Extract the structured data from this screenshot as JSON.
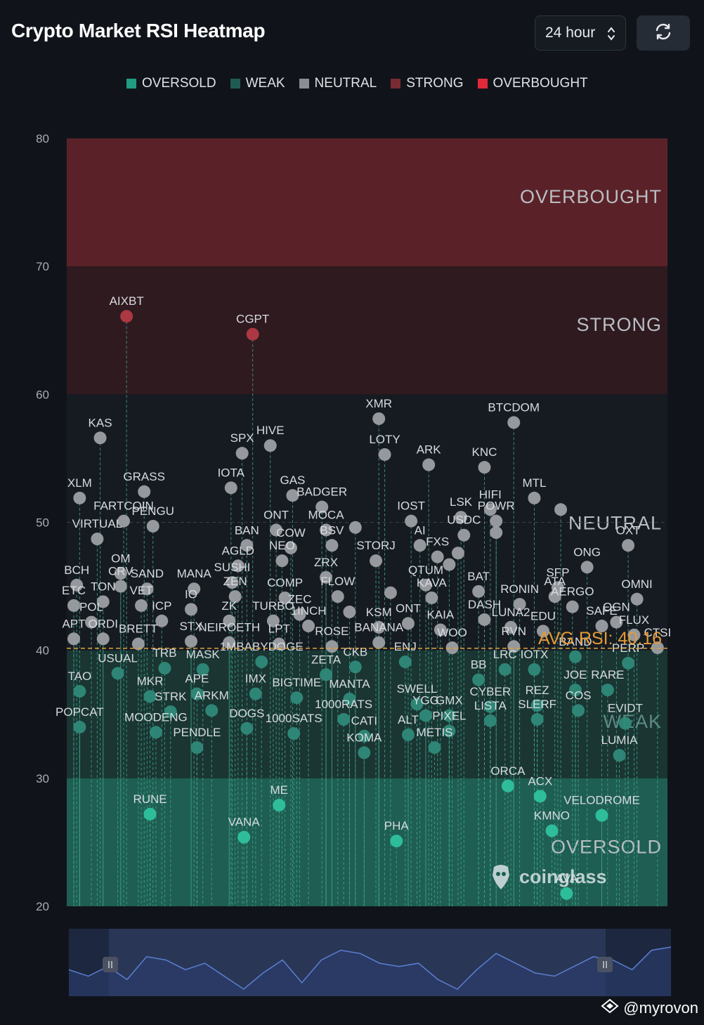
{
  "header": {
    "title": "Crypto Market RSI Heatmap",
    "period_label": "24 hour"
  },
  "legend": [
    {
      "label": "OVERSOLD",
      "color": "#1f9c83"
    },
    {
      "label": "WEAK",
      "color": "#1f5b53"
    },
    {
      "label": "NEUTRAL",
      "color": "#8a8d91"
    },
    {
      "label": "STRONG",
      "color": "#7a2a33"
    },
    {
      "label": "OVERBOUGHT",
      "color": "#e0293b"
    }
  ],
  "watermark": "coinglass",
  "credit": "@myrovon",
  "chart_data": {
    "type": "scatter",
    "ylim": [
      20,
      80
    ],
    "yticks": [
      20,
      30,
      40,
      50,
      60,
      70,
      80
    ],
    "zones": [
      {
        "label": "OVERBOUGHT",
        "from": 70,
        "to": 80,
        "color": "#5a2228"
      },
      {
        "label": "STRONG",
        "from": 60,
        "to": 70,
        "color": "#2f1a1f"
      },
      {
        "label": "NEUTRAL",
        "from": 40,
        "to": 60,
        "color": "#161b21"
      },
      {
        "label": "WEAK",
        "from": 30,
        "to": 40,
        "color": "#1a3532"
      },
      {
        "label": "OVERSOLD",
        "from": 20,
        "to": 30,
        "color": "#1f5e52"
      }
    ],
    "avg_rsi": 40.16,
    "avg_label": "AVG RSI: 40.16",
    "points": [
      {
        "x": 0.09,
        "y": 66.1,
        "label": "AIXBT"
      },
      {
        "x": 0.305,
        "y": 64.7,
        "label": "CGPT"
      },
      {
        "x": 0.52,
        "y": 58.1,
        "label": "XMR"
      },
      {
        "x": 0.75,
        "y": 57.8,
        "label": "BTCDOM"
      },
      {
        "x": 0.045,
        "y": 56.6,
        "label": "KAS"
      },
      {
        "x": 0.335,
        "y": 56.0,
        "label": "HIVE"
      },
      {
        "x": 0.287,
        "y": 55.4,
        "label": "SPX"
      },
      {
        "x": 0.53,
        "y": 55.3,
        "label": "LOTY"
      },
      {
        "x": 0.605,
        "y": 54.5,
        "label": "ARK"
      },
      {
        "x": 0.7,
        "y": 54.3,
        "label": "KNC"
      },
      {
        "x": 0.268,
        "y": 52.7,
        "label": "IOTA"
      },
      {
        "x": 0.12,
        "y": 52.4,
        "label": "GRASS"
      },
      {
        "x": 0.373,
        "y": 52.1,
        "label": "GAS"
      },
      {
        "x": 0.01,
        "y": 51.9,
        "label": "XLM"
      },
      {
        "x": 0.785,
        "y": 51.9,
        "label": "MTL"
      },
      {
        "x": 0.71,
        "y": 51.0,
        "label": "HIFI"
      },
      {
        "x": 0.423,
        "y": 51.2,
        "label": "BADGER"
      },
      {
        "x": 0.085,
        "y": 50.1,
        "label": "FARTCOIN"
      },
      {
        "x": 0.575,
        "y": 50.1,
        "label": "IOST"
      },
      {
        "x": 0.66,
        "y": 50.4,
        "label": "LSK"
      },
      {
        "x": 0.72,
        "y": 50.1,
        "label": "POWR"
      },
      {
        "x": 0.83,
        "y": 51.0,
        "label": "ENS"
      },
      {
        "x": 0.135,
        "y": 49.7,
        "label": "PENGU"
      },
      {
        "x": 0.345,
        "y": 49.4,
        "label": "ONT"
      },
      {
        "x": 0.43,
        "y": 49.4,
        "label": "MOCA"
      },
      {
        "x": 0.48,
        "y": 49.6,
        "label": "ANKR"
      },
      {
        "x": 0.665,
        "y": 49.0,
        "label": "USDC"
      },
      {
        "x": 0.59,
        "y": 48.2,
        "label": "AI"
      },
      {
        "x": 0.72,
        "y": 49.2,
        "label": "TIA"
      },
      {
        "x": 0.945,
        "y": 48.2,
        "label": "OXT"
      },
      {
        "x": 0.04,
        "y": 48.7,
        "label": "VIRTUAL"
      },
      {
        "x": 0.295,
        "y": 48.2,
        "label": "BAN"
      },
      {
        "x": 0.37,
        "y": 48.0,
        "label": "COW"
      },
      {
        "x": 0.44,
        "y": 48.2,
        "label": "BSV"
      },
      {
        "x": 0.62,
        "y": 47.3,
        "label": "FXS"
      },
      {
        "x": 0.655,
        "y": 47.6,
        "label": "KAS2"
      },
      {
        "x": 0.355,
        "y": 47.0,
        "label": "NEO"
      },
      {
        "x": 0.28,
        "y": 46.6,
        "label": "AGLD"
      },
      {
        "x": 0.515,
        "y": 47.0,
        "label": "STORJ"
      },
      {
        "x": 0.64,
        "y": 46.7,
        "label": "ZEN2"
      },
      {
        "x": 0.875,
        "y": 46.5,
        "label": "ONG"
      },
      {
        "x": 0.08,
        "y": 46.0,
        "label": "OM"
      },
      {
        "x": 0.27,
        "y": 45.3,
        "label": "SUSHI"
      },
      {
        "x": 0.43,
        "y": 45.7,
        "label": "ZRX"
      },
      {
        "x": 0.6,
        "y": 45.1,
        "label": "QTUM"
      },
      {
        "x": 0.69,
        "y": 44.6,
        "label": "BAT"
      },
      {
        "x": 0.825,
        "y": 44.9,
        "label": "SFP"
      },
      {
        "x": 0.005,
        "y": 45.1,
        "label": "BCH"
      },
      {
        "x": 0.08,
        "y": 45.0,
        "label": "CRV"
      },
      {
        "x": 0.125,
        "y": 44.8,
        "label": "SAND"
      },
      {
        "x": 0.205,
        "y": 44.8,
        "label": "MANA"
      },
      {
        "x": 0.275,
        "y": 44.2,
        "label": "ZEN"
      },
      {
        "x": 0.36,
        "y": 44.1,
        "label": "COMP"
      },
      {
        "x": 0.45,
        "y": 44.2,
        "label": "FLOW"
      },
      {
        "x": 0.54,
        "y": 44.5,
        "label": "ZEC2"
      },
      {
        "x": 0.61,
        "y": 44.1,
        "label": "KAVA"
      },
      {
        "x": 0.76,
        "y": 43.6,
        "label": "RONIN"
      },
      {
        "x": 0.82,
        "y": 44.2,
        "label": "ATA"
      },
      {
        "x": 0.96,
        "y": 44.0,
        "label": "OMNI"
      },
      {
        "x": 0.0,
        "y": 43.5,
        "label": "ETC"
      },
      {
        "x": 0.05,
        "y": 43.8,
        "label": "TON"
      },
      {
        "x": 0.115,
        "y": 43.5,
        "label": "VET"
      },
      {
        "x": 0.2,
        "y": 43.2,
        "label": "IO"
      },
      {
        "x": 0.265,
        "y": 42.3,
        "label": "ZK"
      },
      {
        "x": 0.34,
        "y": 42.3,
        "label": "TURBO"
      },
      {
        "x": 0.385,
        "y": 42.8,
        "label": "ZEC"
      },
      {
        "x": 0.47,
        "y": 43.0,
        "label": "BSV2"
      },
      {
        "x": 0.57,
        "y": 42.1,
        "label": "ONT2"
      },
      {
        "x": 0.7,
        "y": 42.4,
        "label": "DASH"
      },
      {
        "x": 0.85,
        "y": 43.4,
        "label": "AERGO"
      },
      {
        "x": 0.925,
        "y": 42.2,
        "label": "OGN"
      },
      {
        "x": 0.03,
        "y": 42.2,
        "label": "POL"
      },
      {
        "x": 0.15,
        "y": 42.3,
        "label": "ICP"
      },
      {
        "x": 0.4,
        "y": 41.9,
        "label": "1INCH"
      },
      {
        "x": 0.52,
        "y": 41.8,
        "label": "KSM"
      },
      {
        "x": 0.625,
        "y": 41.6,
        "label": "KAIA"
      },
      {
        "x": 0.745,
        "y": 41.8,
        "label": "LUNA2"
      },
      {
        "x": 0.8,
        "y": 41.5,
        "label": "EDU"
      },
      {
        "x": 0.9,
        "y": 41.9,
        "label": "SAFE"
      },
      {
        "x": 0.955,
        "y": 41.2,
        "label": "FLUX"
      },
      {
        "x": 0.0,
        "y": 40.9,
        "label": "APT"
      },
      {
        "x": 0.05,
        "y": 40.9,
        "label": "ORDI"
      },
      {
        "x": 0.11,
        "y": 40.5,
        "label": "BRETT"
      },
      {
        "x": 0.2,
        "y": 40.7,
        "label": "STX"
      },
      {
        "x": 0.265,
        "y": 40.6,
        "label": "NEIROETH"
      },
      {
        "x": 0.35,
        "y": 40.5,
        "label": "LPT"
      },
      {
        "x": 0.44,
        "y": 40.3,
        "label": "ROSE"
      },
      {
        "x": 0.52,
        "y": 40.6,
        "label": "BANANA"
      },
      {
        "x": 0.645,
        "y": 40.2,
        "label": "WOO"
      },
      {
        "x": 0.75,
        "y": 40.3,
        "label": "RVN"
      },
      {
        "x": 0.995,
        "y": 40.2,
        "label": "CTSI"
      },
      {
        "x": 0.075,
        "y": 38.2,
        "label": "USUAL"
      },
      {
        "x": 0.155,
        "y": 38.6,
        "label": "TRB"
      },
      {
        "x": 0.22,
        "y": 38.5,
        "label": "MASK"
      },
      {
        "x": 0.32,
        "y": 39.1,
        "label": "1MBABYDOGE"
      },
      {
        "x": 0.43,
        "y": 38.1,
        "label": "ZETA"
      },
      {
        "x": 0.48,
        "y": 38.7,
        "label": "CKB"
      },
      {
        "x": 0.565,
        "y": 39.1,
        "label": "ENJ"
      },
      {
        "x": 0.69,
        "y": 37.7,
        "label": "BB"
      },
      {
        "x": 0.735,
        "y": 38.5,
        "label": "LRC"
      },
      {
        "x": 0.785,
        "y": 38.5,
        "label": "IOTX"
      },
      {
        "x": 0.855,
        "y": 39.5,
        "label": "BAND"
      },
      {
        "x": 0.945,
        "y": 39.0,
        "label": "PERP"
      },
      {
        "x": 0.01,
        "y": 36.8,
        "label": "TAO"
      },
      {
        "x": 0.13,
        "y": 36.4,
        "label": "MKR"
      },
      {
        "x": 0.21,
        "y": 36.6,
        "label": "APE"
      },
      {
        "x": 0.31,
        "y": 36.6,
        "label": "IMX"
      },
      {
        "x": 0.38,
        "y": 36.3,
        "label": "BIGTIME"
      },
      {
        "x": 0.47,
        "y": 36.2,
        "label": "MANTA"
      },
      {
        "x": 0.585,
        "y": 35.8,
        "label": "SWELL"
      },
      {
        "x": 0.71,
        "y": 35.6,
        "label": "CYBER"
      },
      {
        "x": 0.79,
        "y": 35.7,
        "label": "REZ"
      },
      {
        "x": 0.855,
        "y": 36.9,
        "label": "JOE"
      },
      {
        "x": 0.91,
        "y": 36.9,
        "label": "RARE"
      },
      {
        "x": 0.86,
        "y": 35.3,
        "label": "COS"
      },
      {
        "x": 0.165,
        "y": 35.2,
        "label": "STRK"
      },
      {
        "x": 0.235,
        "y": 35.3,
        "label": "ARKM"
      },
      {
        "x": 0.46,
        "y": 34.6,
        "label": "1000RATS"
      },
      {
        "x": 0.6,
        "y": 34.9,
        "label": "YGG"
      },
      {
        "x": 0.64,
        "y": 34.9,
        "label": "GMX"
      },
      {
        "x": 0.71,
        "y": 34.5,
        "label": "LISTA"
      },
      {
        "x": 0.79,
        "y": 34.6,
        "label": "SLERF"
      },
      {
        "x": 0.94,
        "y": 34.3,
        "label": "EVIDT"
      },
      {
        "x": 0.01,
        "y": 34.0,
        "label": "POPCAT"
      },
      {
        "x": 0.14,
        "y": 33.6,
        "label": "MOODENG"
      },
      {
        "x": 0.295,
        "y": 33.9,
        "label": "DOGS"
      },
      {
        "x": 0.375,
        "y": 33.5,
        "label": "1000SATS"
      },
      {
        "x": 0.495,
        "y": 33.3,
        "label": "CATI"
      },
      {
        "x": 0.57,
        "y": 33.4,
        "label": "ALT"
      },
      {
        "x": 0.64,
        "y": 33.7,
        "label": "PIXEL"
      },
      {
        "x": 0.21,
        "y": 32.4,
        "label": "PENDLE"
      },
      {
        "x": 0.615,
        "y": 32.4,
        "label": "METIS"
      },
      {
        "x": 0.495,
        "y": 32.0,
        "label": "KOMA"
      },
      {
        "x": 0.93,
        "y": 31.8,
        "label": "LUMIA"
      },
      {
        "x": 0.74,
        "y": 29.4,
        "label": "ORCA"
      },
      {
        "x": 0.795,
        "y": 28.6,
        "label": "ACX"
      },
      {
        "x": 0.13,
        "y": 27.2,
        "label": "RUNE"
      },
      {
        "x": 0.35,
        "y": 27.9,
        "label": "ME"
      },
      {
        "x": 0.9,
        "y": 27.1,
        "label": "VELODROME"
      },
      {
        "x": 0.815,
        "y": 25.9,
        "label": "KMNO"
      },
      {
        "x": 0.29,
        "y": 25.4,
        "label": "VANA"
      },
      {
        "x": 0.55,
        "y": 25.1,
        "label": "PHA"
      },
      {
        "x": 0.84,
        "y": 21.0,
        "label": "AVA"
      }
    ],
    "shown_labels": [
      "AIXBT",
      "CGPT",
      "XMR",
      "BTCDOM",
      "KAS",
      "HIVE",
      "SPX",
      "LOTY",
      "ARK",
      "KNC",
      "IOTA",
      "GRASS",
      "GAS",
      "XLM",
      "MTL",
      "HIFI",
      "BADGER",
      "FARTCOIN",
      "IOST",
      "LSK",
      "POWR",
      "PENGU",
      "ONT",
      "MOCA",
      "USDC",
      "AI",
      "OXT",
      "VIRTUAL",
      "BAN",
      "COW",
      "BSV",
      "FXS",
      "NEO",
      "AGLD",
      "STORJ",
      "ONG",
      "OM",
      "SUSHI",
      "ZRX",
      "QTUM",
      "BAT",
      "SFP",
      "BCH",
      "CRV",
      "SAND",
      "MANA",
      "ZEN",
      "COMP",
      "FLOW",
      "KAVA",
      "RONIN",
      "ATA",
      "OMNI",
      "ETC",
      "TON",
      "VET",
      "IO",
      "ZK",
      "TURBO",
      "ZEC",
      "ONT2",
      "DASH",
      "AERGO",
      "OGN",
      "POL",
      "ICP",
      "1INCH",
      "KSM",
      "KAIA",
      "LUNA2",
      "EDU",
      "SAFE",
      "FLUX",
      "APT",
      "ORDI",
      "BRETT",
      "STX",
      "NEIROETH",
      "LPT",
      "ROSE",
      "BANANA",
      "WOO",
      "RVN",
      "CTSI",
      "USUAL",
      "TRB",
      "MASK",
      "1MBABYDOGE",
      "ZETA",
      "CKB",
      "ENJ",
      "BB",
      "LRC",
      "IOTX",
      "BAND",
      "PERP",
      "TAO",
      "MKR",
      "APE",
      "IMX",
      "BIGTIME",
      "MANTA",
      "SWELL",
      "CYBER",
      "REZ",
      "JOE",
      "RARE",
      "COS",
      "STRK",
      "ARKM",
      "1000RATS",
      "YGG",
      "GMX",
      "LISTA",
      "SLERF",
      "EVIDT",
      "POPCAT",
      "MOODENG",
      "DOGS",
      "1000SATS",
      "CATI",
      "ALT",
      "PIXEL",
      "PENDLE",
      "METIS",
      "KOMA",
      "LUMIA",
      "ORCA",
      "ACX",
      "RUNE",
      "ME",
      "VELODROME",
      "KMNO",
      "VANA",
      "PHA",
      "AVA"
    ],
    "label_overrides": {
      "ONT2": "ONT",
      "USDC": "USDC",
      "GMX": "GMX",
      "YGG": "YGG"
    },
    "navigator_series": [
      36,
      34,
      37,
      33,
      40,
      39,
      36,
      38,
      34,
      30,
      35,
      39,
      32,
      39,
      42,
      41,
      38,
      37,
      38,
      33,
      30,
      36,
      41,
      38,
      35,
      34,
      37,
      40,
      39,
      36,
      42,
      43
    ]
  }
}
